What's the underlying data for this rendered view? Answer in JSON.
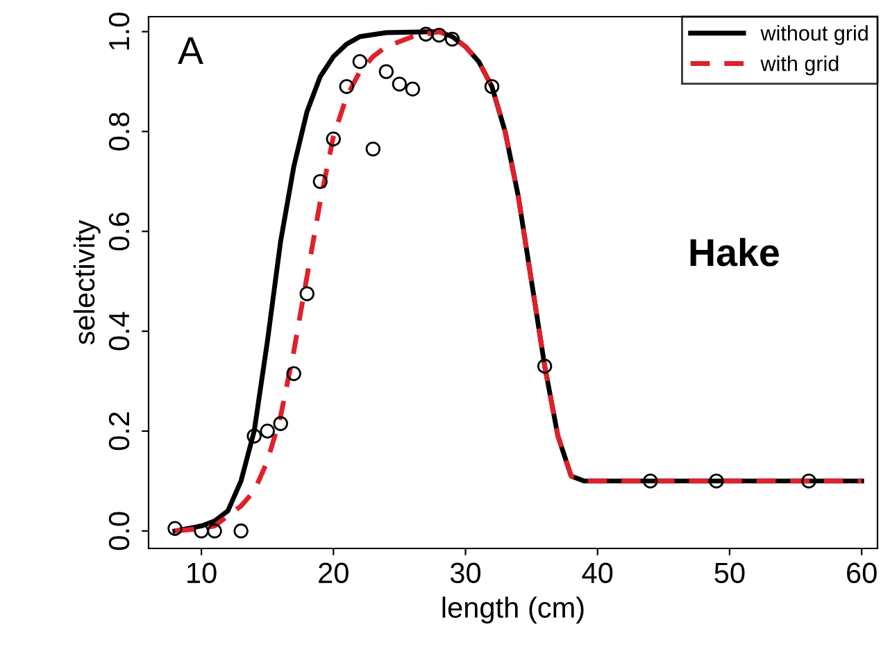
{
  "chart_data": {
    "type": "line",
    "xlabel": "length (cm)",
    "ylabel": "selectivity",
    "xlim": [
      6,
      61.2
    ],
    "xticks": [
      10,
      20,
      30,
      40,
      50,
      60
    ],
    "ylim": [
      -0.035,
      1.03
    ],
    "yticks": [
      {
        "value": 0,
        "label": "0.0"
      },
      0.2,
      0.4,
      0.6,
      0.8,
      {
        "value": 1,
        "label": "1.0"
      }
    ],
    "grid": false,
    "legend": "top right",
    "annotations": [
      "A",
      "Hake"
    ],
    "series": [
      {
        "name": "without grid",
        "color": "#000000",
        "line_style": "solid",
        "marker": "none",
        "x": [
          8,
          10,
          11,
          12,
          13,
          14,
          15,
          16,
          17,
          18,
          19,
          20,
          21,
          22,
          24,
          28,
          29,
          30,
          31,
          32,
          33,
          34,
          35,
          36,
          37,
          38,
          39,
          60
        ],
        "values": [
          0.0,
          0.01,
          0.02,
          0.04,
          0.1,
          0.2,
          0.38,
          0.58,
          0.73,
          0.84,
          0.91,
          0.95,
          0.975,
          0.99,
          0.998,
          1.0,
          0.99,
          0.97,
          0.94,
          0.89,
          0.8,
          0.67,
          0.5,
          0.33,
          0.19,
          0.11,
          0.1,
          0.1
        ]
      },
      {
        "name": "with grid",
        "color": "#e0202a",
        "line_style": "dashed",
        "marker": "none",
        "x": [
          8,
          10,
          11,
          12,
          13,
          14,
          15,
          16,
          17,
          18,
          19,
          20,
          21,
          22,
          23,
          24,
          26,
          28,
          29,
          30,
          31,
          32,
          33,
          34,
          35,
          36,
          37,
          38,
          39,
          60
        ],
        "values": [
          0.0,
          0.005,
          0.01,
          0.03,
          0.05,
          0.08,
          0.14,
          0.23,
          0.36,
          0.51,
          0.66,
          0.79,
          0.87,
          0.92,
          0.95,
          0.97,
          0.99,
          1.0,
          0.99,
          0.97,
          0.94,
          0.89,
          0.8,
          0.67,
          0.5,
          0.33,
          0.19,
          0.11,
          0.1,
          0.1
        ]
      },
      {
        "type": "scatter",
        "color": "#000000",
        "marker": "circle",
        "x": [
          8,
          10,
          11,
          13,
          14,
          15,
          16,
          17,
          18,
          19,
          20,
          21,
          22,
          23,
          24,
          25,
          26,
          27,
          28,
          29,
          32,
          36,
          44,
          49,
          56
        ],
        "values": [
          0.005,
          0.0,
          0.0,
          0.0,
          0.19,
          0.2,
          0.215,
          0.315,
          0.475,
          0.7,
          0.785,
          0.89,
          0.94,
          0.765,
          0.92,
          0.895,
          0.885,
          0.995,
          0.993,
          0.985,
          0.89,
          0.33,
          0.1,
          0.1,
          0.1
        ]
      }
    ]
  }
}
